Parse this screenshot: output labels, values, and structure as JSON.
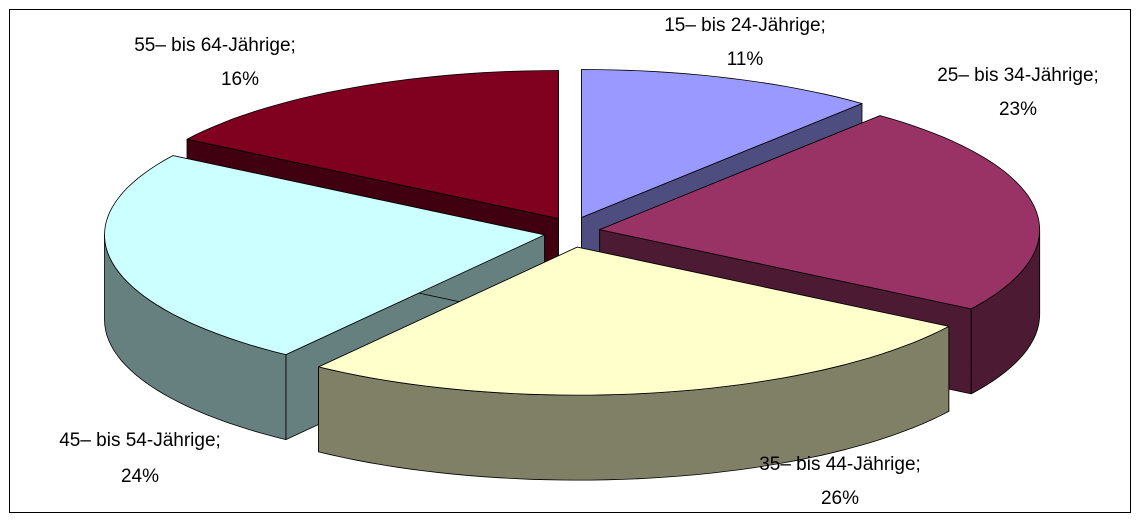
{
  "chart_data": {
    "type": "pie",
    "categories": [
      "15– bis 24-Jährige;",
      "25– bis 34-Jährige;",
      "35– bis 44-Jährige;",
      "45– bis 54-Jährige;",
      "55– bis 64-Jährige;"
    ],
    "values": [
      11,
      23,
      26,
      24,
      16
    ],
    "value_labels": [
      "11%",
      "23%",
      "26%",
      "24%",
      "16%"
    ],
    "colors": [
      "#9999ff",
      "#993366",
      "#ffffcc",
      "#ccffff",
      "#800020"
    ]
  }
}
